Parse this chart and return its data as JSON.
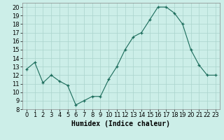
{
  "x": [
    0,
    1,
    2,
    3,
    4,
    5,
    6,
    7,
    8,
    9,
    10,
    11,
    12,
    13,
    14,
    15,
    16,
    17,
    18,
    19,
    20,
    21,
    22,
    23
  ],
  "y": [
    12.7,
    13.5,
    11.1,
    12.0,
    11.3,
    10.8,
    8.5,
    9.0,
    9.5,
    9.5,
    11.5,
    13.0,
    15.0,
    16.5,
    17.0,
    18.5,
    20.0,
    20.0,
    19.3,
    18.0,
    15.0,
    13.2,
    12.0,
    12.0
  ],
  "xlabel": "Humidex (Indice chaleur)",
  "ylim": [
    8,
    20.5
  ],
  "xlim": [
    -0.5,
    23.5
  ],
  "yticks": [
    8,
    9,
    10,
    11,
    12,
    13,
    14,
    15,
    16,
    17,
    18,
    19,
    20
  ],
  "xticks": [
    0,
    1,
    2,
    3,
    4,
    5,
    6,
    7,
    8,
    9,
    10,
    11,
    12,
    13,
    14,
    15,
    16,
    17,
    18,
    19,
    20,
    21,
    22,
    23
  ],
  "line_color": "#1a6b5a",
  "marker": "+",
  "bg_color": "#cceee8",
  "grid_color": "#aad4cc",
  "xlabel_fontsize": 7,
  "tick_fontsize": 6
}
